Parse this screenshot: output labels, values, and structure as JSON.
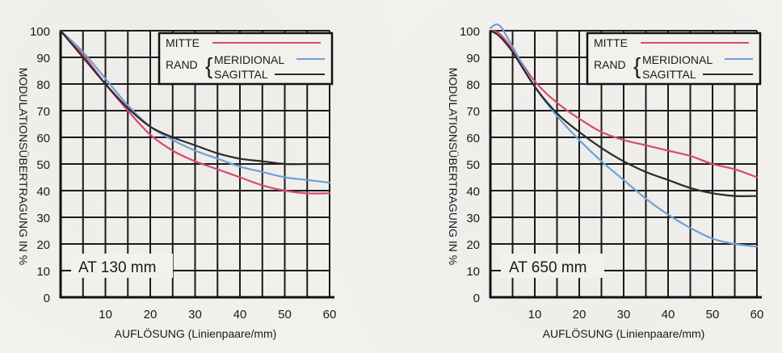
{
  "chart_data": [
    {
      "type": "line",
      "title": "",
      "annotation": "AT 130 mm",
      "xlabel": "AUFLÖSUNG (Linienpaare/mm)",
      "ylabel": "MODULATIONSÜBERTRAGUNG IN %",
      "xlim": [
        0,
        60
      ],
      "ylim": [
        0,
        100
      ],
      "x_ticks": [
        "10",
        "20",
        "30",
        "40",
        "50",
        "60"
      ],
      "y_ticks": [
        "0",
        "10",
        "20",
        "30",
        "40",
        "50",
        "60",
        "70",
        "80",
        "90",
        "100"
      ],
      "grid": true,
      "legend_position": "top-right",
      "legend": {
        "mitte_label": "MITTE",
        "rand_label": "RAND",
        "meridional_label": "MERIDIONAL",
        "sagittal_label": "SAGITTAL"
      },
      "series": [
        {
          "name": "MITTE",
          "color": "#d84a72",
          "x": [
            0,
            5,
            10,
            15,
            20,
            25,
            30,
            35,
            40,
            45,
            50,
            55,
            60
          ],
          "values": [
            100,
            91,
            80,
            70,
            61,
            55,
            51,
            48,
            45,
            42,
            40,
            39,
            39
          ]
        },
        {
          "name": "MERIDIONAL",
          "color": "#6f9fd8",
          "x": [
            0,
            5,
            10,
            15,
            20,
            25,
            30,
            35,
            40,
            45,
            50,
            55,
            60
          ],
          "values": [
            100,
            92,
            82,
            72,
            64,
            59,
            55,
            52,
            49,
            47,
            45,
            44,
            43
          ]
        },
        {
          "name": "SAGITTAL",
          "color": "#2a2a2a",
          "x": [
            0,
            5,
            10,
            15,
            20,
            25,
            30,
            35,
            40,
            45,
            50,
            55,
            60
          ],
          "values": [
            100,
            90,
            80,
            71,
            64,
            60,
            57,
            54,
            52,
            51,
            50,
            50,
            50
          ]
        }
      ]
    },
    {
      "type": "line",
      "title": "",
      "annotation": "AT 650 mm",
      "xlabel": "AUFLÖSUNG (Linienpaare/mm)",
      "ylabel": "MODULATIONSÜBERTRAGUNG IN %",
      "xlim": [
        0,
        60
      ],
      "ylim": [
        0,
        100
      ],
      "x_ticks": [
        "10",
        "20",
        "30",
        "40",
        "50",
        "60"
      ],
      "y_ticks": [
        "0",
        "10",
        "20",
        "30",
        "40",
        "50",
        "60",
        "70",
        "80",
        "90",
        "100"
      ],
      "grid": true,
      "legend_position": "top-right",
      "legend": {
        "mitte_label": "MITTE",
        "rand_label": "RAND",
        "meridional_label": "MERIDIONAL",
        "sagittal_label": "SAGITTAL"
      },
      "series": [
        {
          "name": "MITTE",
          "color": "#d84a72",
          "x": [
            0,
            2,
            5,
            10,
            15,
            20,
            25,
            30,
            35,
            40,
            45,
            50,
            55,
            60
          ],
          "values": [
            100,
            99,
            93,
            81,
            73,
            67,
            62,
            59,
            57,
            55,
            53,
            50,
            48,
            45
          ]
        },
        {
          "name": "MERIDIONAL",
          "color": "#6f9fd8",
          "x": [
            0,
            2,
            5,
            10,
            15,
            20,
            25,
            30,
            35,
            40,
            45,
            50,
            55,
            60
          ],
          "values": [
            101,
            102,
            94,
            79,
            68,
            59,
            51,
            44,
            37,
            31,
            26,
            22,
            20,
            19
          ]
        },
        {
          "name": "SAGITTAL",
          "color": "#2a2a2a",
          "x": [
            0,
            2,
            5,
            10,
            15,
            20,
            25,
            30,
            35,
            40,
            45,
            50,
            55,
            60
          ],
          "values": [
            100,
            98,
            92,
            79,
            69,
            62,
            56,
            51,
            47,
            44,
            41,
            39,
            38,
            38
          ]
        }
      ]
    }
  ]
}
